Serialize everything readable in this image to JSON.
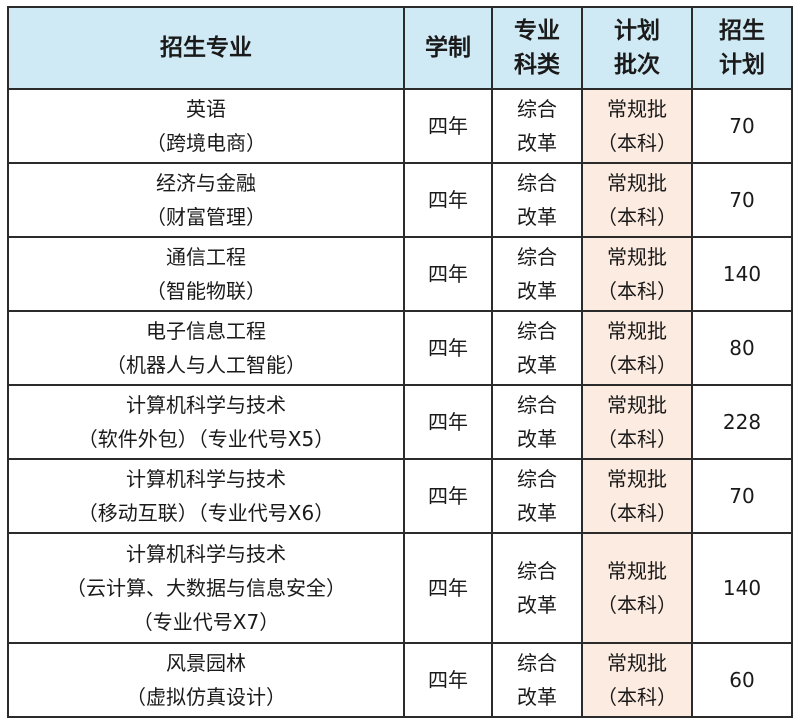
{
  "headers": [
    {
      "lines": [
        "招生专业"
      ]
    },
    {
      "lines": [
        "学制"
      ]
    },
    {
      "lines": [
        "专业",
        "科类"
      ]
    },
    {
      "lines": [
        "计划",
        "批次"
      ]
    },
    {
      "lines": [
        "招生",
        "计划"
      ]
    }
  ],
  "rows": [
    {
      "major": [
        "英语",
        "（跨境电商）"
      ],
      "duration": "四年",
      "category": [
        "综合",
        "改革"
      ],
      "batch": [
        "常规批",
        "（本科）"
      ],
      "plan": "70"
    },
    {
      "major": [
        "经济与金融",
        "（财富管理）"
      ],
      "duration": "四年",
      "category": [
        "综合",
        "改革"
      ],
      "batch": [
        "常规批",
        "（本科）"
      ],
      "plan": "70"
    },
    {
      "major": [
        "通信工程",
        "（智能物联）"
      ],
      "duration": "四年",
      "category": [
        "综合",
        "改革"
      ],
      "batch": [
        "常规批",
        "（本科）"
      ],
      "plan": "140"
    },
    {
      "major": [
        "电子信息工程",
        "（机器人与人工智能）"
      ],
      "duration": "四年",
      "category": [
        "综合",
        "改革"
      ],
      "batch": [
        "常规批",
        "（本科）"
      ],
      "plan": "80"
    },
    {
      "major": [
        "计算机科学与技术",
        "（软件外包）（专业代号X5）"
      ],
      "duration": "四年",
      "category": [
        "综合",
        "改革"
      ],
      "batch": [
        "常规批",
        "（本科）"
      ],
      "plan": "228"
    },
    {
      "major": [
        "计算机科学与技术",
        "（移动互联）（专业代号X6）"
      ],
      "duration": "四年",
      "category": [
        "综合",
        "改革"
      ],
      "batch": [
        "常规批",
        "（本科）"
      ],
      "plan": "70"
    },
    {
      "major": [
        "计算机科学与技术",
        "（云计算、大数据与信息安全）",
        "（专业代号X7）"
      ],
      "duration": "四年",
      "category": [
        "综合",
        "改革"
      ],
      "batch": [
        "常规批",
        "（本科）"
      ],
      "plan": "140"
    },
    {
      "major": [
        "风景园林",
        "（虚拟仿真设计）"
      ],
      "duration": "四年",
      "category": [
        "综合",
        "改革"
      ],
      "batch": [
        "常规批",
        "（本科）"
      ],
      "plan": "60"
    }
  ],
  "colors": {
    "header_bg": "#cfeaf4",
    "batch_bg": "#fcebe0",
    "border": "#2b2b2b"
  }
}
